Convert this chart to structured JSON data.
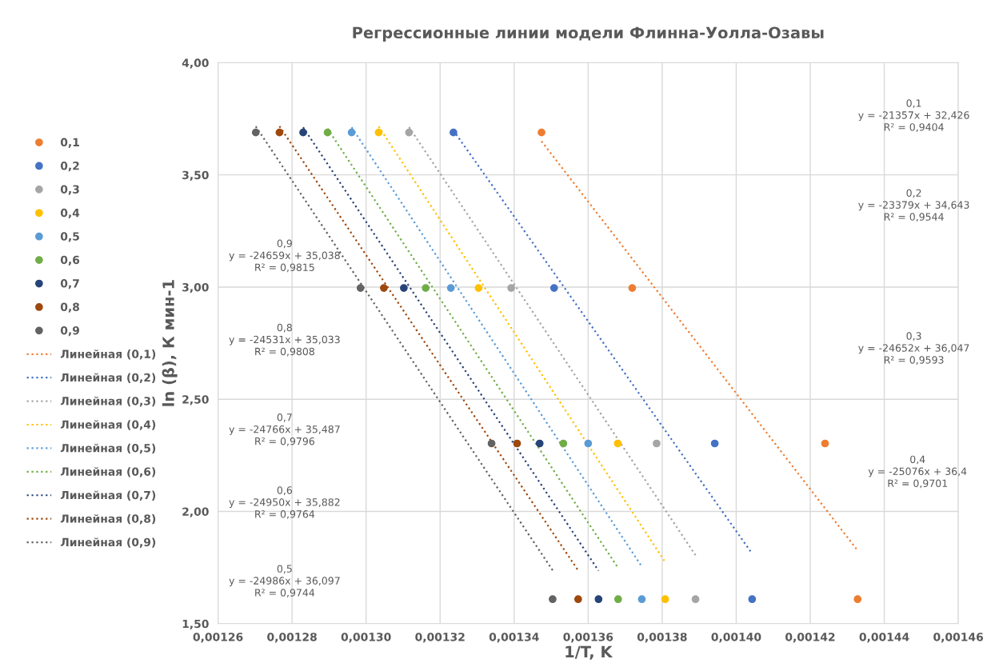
{
  "chart_data": {
    "type": "scatter",
    "title": "Регрессионные линии модели Флинна-Уолла-Озавы",
    "xlabel": "1/T, K",
    "ylabel": "ln (β), К мин-1",
    "xlim": [
      0.00126,
      0.00146
    ],
    "ylim": [
      1.5,
      4.0
    ],
    "xticks": [
      {
        "value": 0.00126,
        "label": "0,00126"
      },
      {
        "value": 0.00128,
        "label": "0,00128"
      },
      {
        "value": 0.0013,
        "label": "0,00130"
      },
      {
        "value": 0.00132,
        "label": "0,00132"
      },
      {
        "value": 0.00134,
        "label": "0,00134"
      },
      {
        "value": 0.00136,
        "label": "0,00136"
      },
      {
        "value": 0.00138,
        "label": "0,00138"
      },
      {
        "value": 0.0014,
        "label": "0,00140"
      },
      {
        "value": 0.00142,
        "label": "0,00142"
      },
      {
        "value": 0.00144,
        "label": "0,00144"
      },
      {
        "value": 0.00146,
        "label": "0,00146"
      }
    ],
    "yticks": [
      {
        "value": 1.5,
        "label": "1,50"
      },
      {
        "value": 2.0,
        "label": "2,00"
      },
      {
        "value": 2.5,
        "label": "2,50"
      },
      {
        "value": 3.0,
        "label": "3,00"
      },
      {
        "value": 3.5,
        "label": "3,50"
      },
      {
        "value": 4.0,
        "label": "4,00"
      }
    ],
    "grid": true,
    "legend": "left",
    "marker": "circle",
    "series": [
      {
        "name": "0,1",
        "color": "#ed7d31",
        "x": [
          0.0013474,
          0.0013719,
          0.001424,
          0.0014328
        ],
        "values": [
          3.689,
          2.996,
          2.303,
          1.609
        ]
      },
      {
        "name": "0,2",
        "color": "#4472c4",
        "x": [
          0.0013236,
          0.0013508,
          0.0013942,
          0.0014043
        ],
        "values": [
          3.689,
          2.996,
          2.303,
          1.609
        ]
      },
      {
        "name": "0,3",
        "color": "#a5a5a5",
        "x": [
          0.0013116,
          0.0013392,
          0.0013785,
          0.001389
        ],
        "values": [
          3.689,
          2.996,
          2.303,
          1.609
        ]
      },
      {
        "name": "0,4",
        "color": "#ffc000",
        "x": [
          0.0013034,
          0.0013304,
          0.001368,
          0.0013808
        ],
        "values": [
          3.689,
          2.996,
          2.303,
          1.609
        ]
      },
      {
        "name": "0,5",
        "color": "#5b9bd5",
        "x": [
          0.0012961,
          0.0013229,
          0.00136,
          0.0013745
        ],
        "values": [
          3.689,
          2.996,
          2.303,
          1.609
        ]
      },
      {
        "name": "0,6",
        "color": "#70ad47",
        "x": [
          0.0012896,
          0.0013161,
          0.0013533,
          0.0013681
        ],
        "values": [
          3.689,
          2.996,
          2.303,
          1.609
        ]
      },
      {
        "name": "0,7",
        "color": "#264478",
        "x": [
          0.001283,
          0.0013102,
          0.0013469,
          0.0013628
        ],
        "values": [
          3.689,
          2.996,
          2.303,
          1.609
        ]
      },
      {
        "name": "0,8",
        "color": "#9e480e",
        "x": [
          0.0012766,
          0.0013048,
          0.0013408,
          0.0013573
        ],
        "values": [
          3.689,
          2.996,
          2.303,
          1.609
        ]
      },
      {
        "name": "0,9",
        "color": "#636363",
        "x": [
          0.0012702,
          0.0012985,
          0.0013339,
          0.0013504
        ],
        "values": [
          3.689,
          2.996,
          2.303,
          1.609
        ]
      },
      {
        "name": "Линейная (0,1)",
        "type": "line",
        "line_style": "dotted",
        "marker": "none",
        "color": "#ed7d31",
        "x": [
          0.0013474,
          0.0014328
        ],
        "values": [
          3.65,
          1.826
        ]
      },
      {
        "name": "Линейная (0,2)",
        "type": "line",
        "line_style": "dotted",
        "marker": "none",
        "color": "#4472c4",
        "x": [
          0.0013236,
          0.0014043
        ],
        "values": [
          3.698,
          1.812
        ]
      },
      {
        "name": "Линейная (0,3)",
        "type": "line",
        "line_style": "dotted",
        "marker": "none",
        "color": "#a5a5a5",
        "x": [
          0.0013116,
          0.001389
        ],
        "values": [
          3.713,
          1.805
        ]
      },
      {
        "name": "Линейная (0,4)",
        "type": "line",
        "line_style": "dotted",
        "marker": "none",
        "color": "#ffc000",
        "x": [
          0.0013034,
          0.0013808
        ],
        "values": [
          3.716,
          1.775
        ]
      },
      {
        "name": "Линейная (0,5)",
        "type": "line",
        "line_style": "dotted",
        "marker": "none",
        "color": "#5b9bd5",
        "x": [
          0.0012961,
          0.0013745
        ],
        "values": [
          3.712,
          1.754
        ]
      },
      {
        "name": "Линейная (0,6)",
        "type": "line",
        "line_style": "dotted",
        "marker": "none",
        "color": "#70ad47",
        "x": [
          0.0012896,
          0.0013681
        ],
        "values": [
          3.706,
          1.748
        ]
      },
      {
        "name": "Линейная (0,7)",
        "type": "line",
        "line_style": "dotted",
        "marker": "none",
        "color": "#264478",
        "x": [
          0.001283,
          0.0013628
        ],
        "values": [
          3.712,
          1.736
        ]
      },
      {
        "name": "Линейная (0,8)",
        "type": "line",
        "line_style": "dotted",
        "marker": "none",
        "color": "#9e480e",
        "x": [
          0.0012766,
          0.0013573
        ],
        "values": [
          3.717,
          1.737
        ]
      },
      {
        "name": "Линейная (0,9)",
        "type": "line",
        "line_style": "dotted",
        "marker": "none",
        "color": "#636363",
        "x": [
          0.0012702,
          0.0013504
        ],
        "values": [
          3.716,
          1.738
        ]
      }
    ],
    "annotations": [
      "0,1\ny = -21357x + 32,426\nR² = 0,9404",
      "0,2\ny = -23379x + 34,643\nR² = 0,9544",
      "0,3\ny = -24652x + 36,047\nR² = 0,9593",
      "0,4\ny = -25076x + 36,4\nR² = 0,9701",
      "0,5\ny = -24986x + 36,097\nR² = 0,9744",
      "0,6\ny = -24950x + 35,882\nR² = 0,9764",
      "0,7\ny = -24766x + 35,487\nR² = 0,9796",
      "0,8\ny = -24531x + 35,033\nR² = 0,9808",
      "0,9\ny = -24659x + 35,038\nR² = 0,9815"
    ]
  }
}
